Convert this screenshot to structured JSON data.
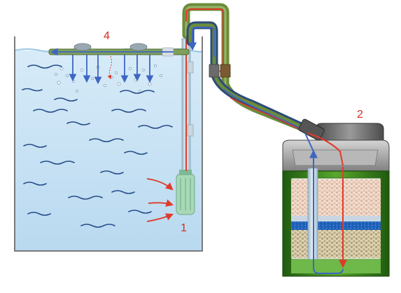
{
  "labels": {
    "intake": "1",
    "filter": "2",
    "spray_bar": "4"
  },
  "colors": {
    "water": "#c9e3f5",
    "tank_outline": "#7a7a7a",
    "flow_arrow_red": "#e03a2a",
    "flow_arrow_blue": "#3d66c2",
    "label_red": "#d82a1e",
    "hose_green": "#6b8c3a",
    "canister_green": "#3f8f1e",
    "media_blue": "#1d5fb8",
    "wave_dark": "#274e8a"
  },
  "icons": {
    "intake_strainer": "strainer-icon",
    "spray_bar": "spray-bar-icon",
    "canister": "canister-filter-icon"
  }
}
